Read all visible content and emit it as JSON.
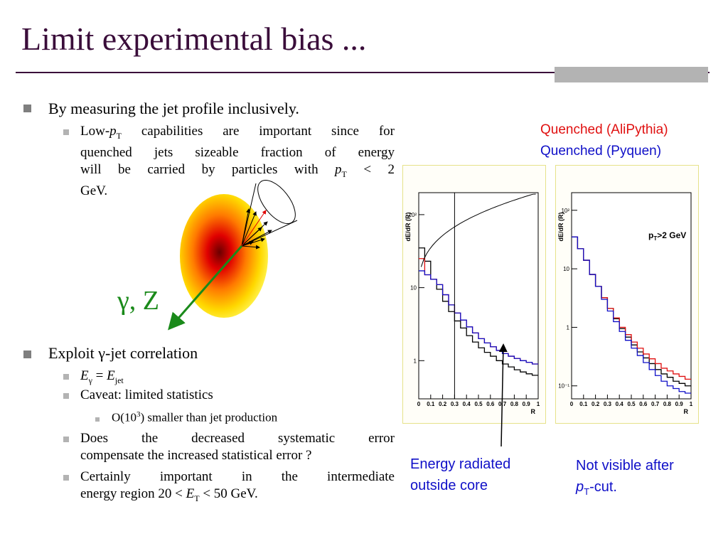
{
  "slide": {
    "title": "Limit experimental bias ..."
  },
  "bullets": {
    "b1": "By measuring the jet profile inclusively.",
    "b1_sub1_line1_pre": "Low-",
    "b1_sub1_line1_p": "p",
    "b1_sub1_line1_T": "T",
    "b1_sub1_line1_post": " capabilities are important since for",
    "b1_sub1_line2": "quenched jets sizeable fraction of energy",
    "b1_sub1_line3_pre": "will be carried by particles with ",
    "b1_sub1_line3_p": "p",
    "b1_sub1_line3_T": "T",
    "b1_sub1_line3_post": " < 2",
    "b1_sub1_line4": "GeV.",
    "b2": "Exploit γ-jet correlation",
    "b2_sub1_E": "E",
    "b2_sub1_gamma": "γ",
    "b2_sub1_eq": " = ",
    "b2_sub1_E2": "E",
    "b2_sub1_jet": "jet",
    "b2_sub2": "Caveat: limited statistics",
    "b2_sub2_sub1_pre": "O(10",
    "b2_sub2_sub1_sup": "3",
    "b2_sub2_sub1_post": ") smaller than jet production",
    "b2_sub3_line1": "Does the decreased systematic error",
    "b2_sub3_line2": "compensate the increased statistical error ?",
    "b2_sub4_line1": "Certainly important in the intermediate",
    "b2_sub4_line2_pre": "energy region 20 < ",
    "b2_sub4_line2_E": "E",
    "b2_sub4_line2_T": "T",
    "b2_sub4_line2_post": " < 50 GeV."
  },
  "illustration": {
    "boson_label": "γ, Z"
  },
  "legend": {
    "alipythia": "Quenched (AliPythia)",
    "pyquen": "Quenched (Pyquen)",
    "alipythia_color": "#e01010",
    "pyquen_color": "#1010c8"
  },
  "notes": {
    "energy_line1": "Energy radiated",
    "energy_line2": "outside core",
    "notvisible_line1": "Not visible after",
    "notvisible_p": "p",
    "notvisible_T": "T",
    "notvisible_post": "-cut."
  },
  "chart_data": [
    {
      "type": "line",
      "ylabel": "dE/dR (R)",
      "xlabel": "R",
      "x_ticks": [
        "0",
        "0.1",
        "0.2",
        "0.3",
        "0.4",
        "0.5",
        "0.6",
        "0.7",
        "0.8",
        "0.9",
        "1"
      ],
      "y_tick_labels": [
        "10²",
        "10",
        "1"
      ],
      "xlim": [
        0,
        1
      ],
      "y_scale": "log",
      "ylim": [
        0.3,
        200
      ],
      "vertical_line_x": 0.3,
      "x": [
        0.025,
        0.075,
        0.125,
        0.175,
        0.225,
        0.275,
        0.325,
        0.375,
        0.425,
        0.475,
        0.525,
        0.575,
        0.625,
        0.675,
        0.725,
        0.775,
        0.825,
        0.875,
        0.925,
        0.975
      ],
      "series": [
        {
          "color": "#000000",
          "values": [
            35,
            23,
            13,
            9.5,
            6.5,
            4.7,
            3.5,
            2.8,
            2.2,
            1.8,
            1.5,
            1.3,
            1.15,
            1.0,
            0.9,
            0.82,
            0.75,
            0.7,
            0.66,
            0.63
          ]
        },
        {
          "color": "#e01010",
          "values": [
            25,
            15,
            13,
            11,
            8,
            5.8,
            4.5,
            3.6,
            2.9,
            2.4,
            2.0,
            1.75,
            1.55,
            1.38,
            1.25,
            1.15,
            1.07,
            1.0,
            0.95,
            0.9
          ]
        },
        {
          "color": "#1010c8",
          "values": [
            17,
            15,
            13,
            11,
            8,
            5.8,
            4.5,
            3.6,
            2.9,
            2.4,
            2.0,
            1.75,
            1.55,
            1.38,
            1.25,
            1.15,
            1.07,
            1.0,
            0.95,
            0.9
          ]
        }
      ]
    },
    {
      "type": "line",
      "ylabel": "dE/dR (R)",
      "xlabel": "R",
      "annotation_p": "p",
      "annotation_T": "T",
      "annotation_post": ">2 GeV",
      "x_ticks": [
        "0",
        "0.1",
        "0.2",
        "0.3",
        "0.4",
        "0.5",
        "0.6",
        "0.7",
        "0.8",
        "0.9",
        "1"
      ],
      "y_tick_labels": [
        "10²",
        "10",
        "1",
        "10⁻¹"
      ],
      "xlim": [
        0,
        1
      ],
      "y_scale": "log",
      "ylim": [
        0.06,
        200
      ],
      "x": [
        0.025,
        0.075,
        0.125,
        0.175,
        0.225,
        0.275,
        0.325,
        0.375,
        0.425,
        0.475,
        0.525,
        0.575,
        0.625,
        0.675,
        0.725,
        0.775,
        0.825,
        0.875,
        0.925,
        0.975
      ],
      "series": [
        {
          "color": "#000000",
          "values": [
            35,
            22,
            14,
            8,
            5,
            3.2,
            2.1,
            1.4,
            0.95,
            0.68,
            0.5,
            0.38,
            0.3,
            0.24,
            0.19,
            0.16,
            0.14,
            0.12,
            0.11,
            0.1
          ]
        },
        {
          "color": "#e01010",
          "values": [
            35,
            22,
            14,
            8,
            5,
            3.2,
            2.1,
            1.45,
            1.0,
            0.75,
            0.56,
            0.44,
            0.35,
            0.29,
            0.24,
            0.2,
            0.18,
            0.16,
            0.145,
            0.13
          ]
        },
        {
          "color": "#1010c8",
          "values": [
            35,
            22,
            14,
            8,
            5,
            3.0,
            1.9,
            1.25,
            0.85,
            0.6,
            0.44,
            0.33,
            0.25,
            0.19,
            0.15,
            0.12,
            0.1,
            0.09,
            0.08,
            0.075
          ]
        }
      ]
    }
  ]
}
